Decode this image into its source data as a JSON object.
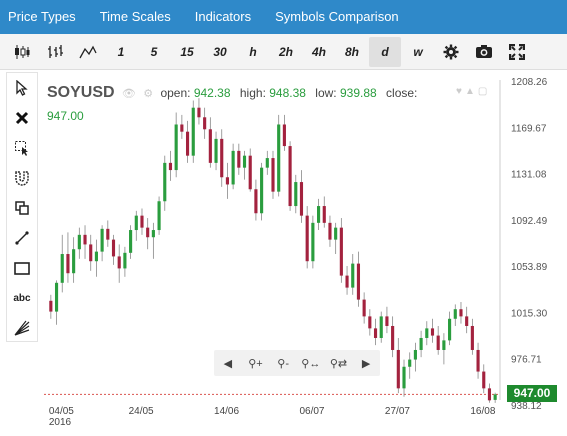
{
  "menu": [
    "Price Types",
    "Time Scales",
    "Indicators",
    "Symbols Comparison"
  ],
  "toolbar": {
    "chart_types": [
      "candlestick-icon",
      "ohlc-bars-icon",
      "line-chart-icon"
    ],
    "timeframes": [
      "1",
      "5",
      "15",
      "30",
      "h",
      "2h",
      "4h",
      "8h",
      "d",
      "w"
    ],
    "active_timeframe": "d",
    "actions": [
      "settings-gear-icon",
      "camera-icon",
      "fullscreen-icon"
    ]
  },
  "left_tools": [
    "cursor-arrow-icon",
    "delete-x-icon",
    "select-area-icon",
    "magnet-icon",
    "copy-icon",
    "trend-line-icon",
    "rectangle-icon",
    "text-abc-icon",
    "fibonacci-fan-icon"
  ],
  "left_tools_text": {
    "text_tool": "abc"
  },
  "header": {
    "symbol": "SOYUSD",
    "open_label": "open:",
    "open": "942.38",
    "high_label": "high:",
    "high": "948.38",
    "low_label": "low:",
    "low": "939.88",
    "close_label": "close:",
    "close": "947.00"
  },
  "nav": [
    "scroll-left-icon",
    "zoom-in-icon",
    "zoom-out-icon",
    "zoom-fit-icon",
    "zoom-reset-icon",
    "scroll-right-icon"
  ],
  "current_price": "947.00",
  "colors": {
    "up": "#2a9d3e",
    "down": "#a3223e",
    "menu": "#2f89c9",
    "price_tag": "#1e8a2e"
  },
  "chart_data": {
    "type": "candlestick",
    "symbol": "SOYUSD",
    "ylim": [
      940,
      1210
    ],
    "yticks": [
      {
        "label": "1208.26",
        "value": 1208.26
      },
      {
        "label": "1169.67",
        "value": 1169.67
      },
      {
        "label": "1131.08",
        "value": 1131.08
      },
      {
        "label": "1092.49",
        "value": 1092.49
      },
      {
        "label": "1053.89",
        "value": 1053.89
      },
      {
        "label": "1015.30",
        "value": 1015.3
      },
      {
        "label": "976.71",
        "value": 976.71
      },
      {
        "label": "938.12",
        "value": 938.12
      }
    ],
    "xticks": [
      {
        "label": "04/05",
        "index": 0
      },
      {
        "label": "24/05",
        "index": 14
      },
      {
        "label": "14/06",
        "index": 29
      },
      {
        "label": "06/07",
        "index": 44
      },
      {
        "label": "27/07",
        "index": 59
      },
      {
        "label": "16/08",
        "index": 74
      }
    ],
    "year_label": "2016",
    "current_price": 947.0,
    "candles": [
      [
        1025,
        1030,
        1010,
        1016
      ],
      [
        1016,
        1042,
        1005,
        1040
      ],
      [
        1040,
        1080,
        1032,
        1064
      ],
      [
        1064,
        1082,
        1040,
        1048
      ],
      [
        1048,
        1078,
        1040,
        1068
      ],
      [
        1068,
        1086,
        1060,
        1080
      ],
      [
        1080,
        1088,
        1060,
        1072
      ],
      [
        1072,
        1080,
        1050,
        1058
      ],
      [
        1058,
        1076,
        1045,
        1066
      ],
      [
        1066,
        1088,
        1058,
        1085
      ],
      [
        1085,
        1092,
        1070,
        1076
      ],
      [
        1076,
        1080,
        1055,
        1062
      ],
      [
        1062,
        1072,
        1040,
        1052
      ],
      [
        1052,
        1070,
        1045,
        1065
      ],
      [
        1065,
        1088,
        1060,
        1084
      ],
      [
        1084,
        1100,
        1075,
        1096
      ],
      [
        1096,
        1102,
        1080,
        1086
      ],
      [
        1086,
        1094,
        1068,
        1078
      ],
      [
        1078,
        1090,
        1060,
        1084
      ],
      [
        1084,
        1112,
        1080,
        1108
      ],
      [
        1108,
        1146,
        1100,
        1140
      ],
      [
        1140,
        1150,
        1125,
        1134
      ],
      [
        1134,
        1182,
        1128,
        1172
      ],
      [
        1172,
        1180,
        1160,
        1166
      ],
      [
        1166,
        1175,
        1140,
        1146
      ],
      [
        1146,
        1192,
        1140,
        1186
      ],
      [
        1186,
        1194,
        1172,
        1178
      ],
      [
        1178,
        1186,
        1160,
        1168
      ],
      [
        1168,
        1178,
        1136,
        1140
      ],
      [
        1140,
        1166,
        1134,
        1160
      ],
      [
        1160,
        1168,
        1120,
        1128
      ],
      [
        1128,
        1140,
        1110,
        1122
      ],
      [
        1122,
        1156,
        1118,
        1150
      ],
      [
        1150,
        1156,
        1130,
        1136
      ],
      [
        1136,
        1150,
        1126,
        1146
      ],
      [
        1146,
        1152,
        1116,
        1118
      ],
      [
        1118,
        1126,
        1092,
        1098
      ],
      [
        1098,
        1140,
        1092,
        1136
      ],
      [
        1136,
        1150,
        1130,
        1144
      ],
      [
        1144,
        1150,
        1110,
        1116
      ],
      [
        1116,
        1180,
        1112,
        1172
      ],
      [
        1172,
        1180,
        1150,
        1154
      ],
      [
        1154,
        1158,
        1100,
        1104
      ],
      [
        1104,
        1130,
        1098,
        1124
      ],
      [
        1124,
        1134,
        1090,
        1096
      ],
      [
        1096,
        1104,
        1052,
        1058
      ],
      [
        1058,
        1096,
        1052,
        1090
      ],
      [
        1090,
        1110,
        1084,
        1104
      ],
      [
        1104,
        1112,
        1086,
        1090
      ],
      [
        1090,
        1096,
        1070,
        1076
      ],
      [
        1076,
        1090,
        1064,
        1086
      ],
      [
        1086,
        1094,
        1040,
        1046
      ],
      [
        1046,
        1054,
        1030,
        1036
      ],
      [
        1036,
        1064,
        1030,
        1056
      ],
      [
        1056,
        1066,
        1020,
        1026
      ],
      [
        1026,
        1032,
        1006,
        1012
      ],
      [
        1012,
        1018,
        996,
        1002
      ],
      [
        1002,
        1010,
        988,
        994
      ],
      [
        994,
        1016,
        990,
        1012
      ],
      [
        1012,
        1020,
        998,
        1004
      ],
      [
        1004,
        1012,
        978,
        984
      ],
      [
        984,
        994,
        948,
        952
      ],
      [
        952,
        976,
        945,
        970
      ],
      [
        970,
        982,
        960,
        976
      ],
      [
        976,
        990,
        966,
        984
      ],
      [
        984,
        1000,
        978,
        994
      ],
      [
        994,
        1008,
        988,
        1002
      ],
      [
        1002,
        1010,
        990,
        996
      ],
      [
        996,
        1004,
        980,
        984
      ],
      [
        984,
        998,
        972,
        992
      ],
      [
        992,
        1016,
        988,
        1010
      ],
      [
        1010,
        1022,
        1004,
        1018
      ],
      [
        1018,
        1024,
        1006,
        1012
      ],
      [
        1012,
        1020,
        998,
        1004
      ],
      [
        1004,
        1010,
        980,
        984
      ],
      [
        984,
        990,
        960,
        966
      ],
      [
        966,
        972,
        948,
        952
      ],
      [
        952,
        956,
        940,
        942
      ],
      [
        942.38,
        948.38,
        939.88,
        947.0
      ]
    ]
  }
}
